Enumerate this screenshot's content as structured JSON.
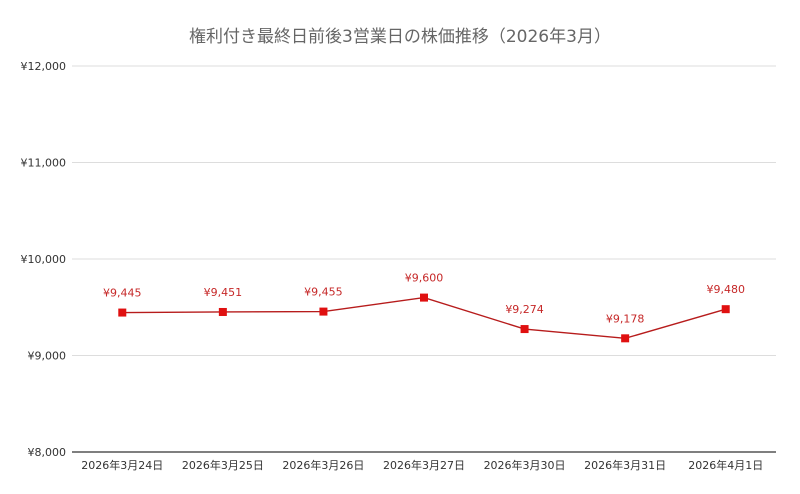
{
  "chart_data": {
    "type": "line",
    "title": "権利付き最終日前後3営業日の株価推移（2026年3月）",
    "categories": [
      "2026年3月24日",
      "2026年3月25日",
      "2026年3月26日",
      "2026年3月27日",
      "2026年3月30日",
      "2026年3月31日",
      "2026年4月1日"
    ],
    "series": [
      {
        "values": [
          9445,
          9451,
          9455,
          9600,
          9274,
          9178,
          9480
        ],
        "data_labels": [
          "¥9,445",
          "¥9,451",
          "¥9,455",
          "¥9,600",
          "¥9,274",
          "¥9,178",
          "¥9,480"
        ]
      }
    ],
    "ylim": [
      8000,
      12000
    ],
    "yticks": [
      8000,
      9000,
      10000,
      11000,
      12000
    ],
    "ytick_labels": [
      "¥8,000",
      "¥9,000",
      "¥10,000",
      "¥11,000",
      "¥12,000"
    ],
    "xlabel": "",
    "ylabel": "",
    "grid": true,
    "legend": "none",
    "colors": {
      "line": "#b71c1c",
      "marker": "#e01010",
      "label": "#c62828",
      "grid": "#dddddd",
      "axis": "#333333"
    }
  }
}
